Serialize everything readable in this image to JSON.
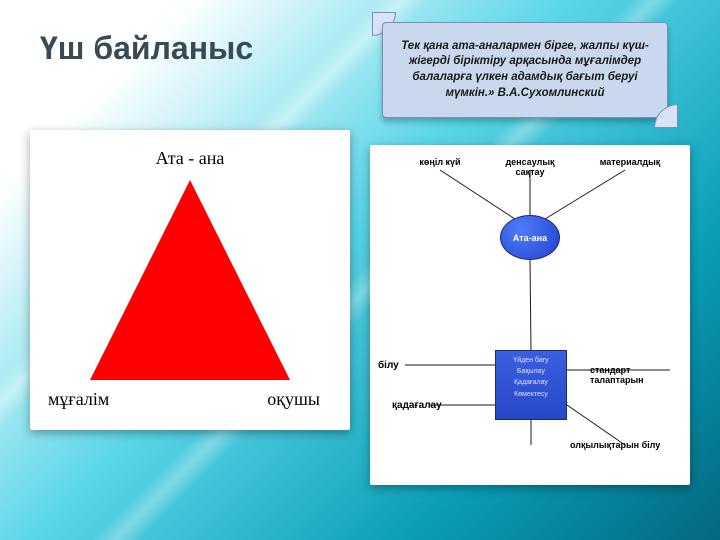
{
  "title": "Үш байланыс",
  "quote": {
    "text": "Тек қана ата-аналармен бірге, жалпы күш-жігерді біріктіру арқасында мұғалімдер балаларға үлкен адамдық бағыт беруі мүмкін.» В.А.Сухомлинский",
    "bg_color": "#c9d8ef",
    "border_color": "#7a8fb5",
    "font_size": 11.5
  },
  "triangle_diagram": {
    "top_label": "Ата - ана",
    "bottom_left_label": "мұғалім",
    "bottom_right_label": "оқушы",
    "fill_color": "#ff0000",
    "triangle_height": 200,
    "triangle_half_width": 100,
    "label_font_size": 18
  },
  "concept_diagram": {
    "top_labels": {
      "l1": "көңіл күй",
      "l2": "денсаулық сақтау",
      "l3": "материалдық"
    },
    "circle": {
      "label": "Ата-ана",
      "fill": "#2f55e8",
      "text_color": "#ffffff"
    },
    "center_box": {
      "lines": "Үйден бағу\nБақылау\nҚадағалау\nКөмектесу",
      "fill": "#2f4fd8",
      "text_color": "#d8e2ff"
    },
    "side_labels": {
      "s1": "білу",
      "s2": "қадағалау",
      "s3": "стандарт талаптарын",
      "s4": "олқылықтарын білу"
    },
    "line_color": "#1a1a1a"
  },
  "panels": {
    "bg": "#ffffff",
    "shadow": "rgba(0,0,0,0.35)"
  },
  "page_bg": {
    "grad_start": "#ffffff",
    "grad_mid": "#5cd6e8",
    "grad_end": "#036880"
  }
}
